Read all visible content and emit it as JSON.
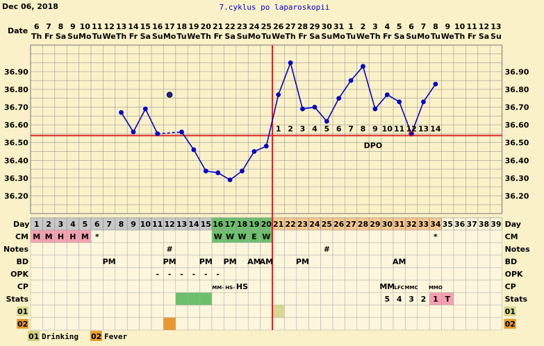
{
  "header": {
    "date": "Dec 06, 2018",
    "title": "7.cyklus po laparoskopii",
    "date_label": "Date",
    "day_label": "Day",
    "dpo_label": "DPO"
  },
  "dates": [
    {
      "d": "6",
      "w": "Th"
    },
    {
      "d": "7",
      "w": "Fr"
    },
    {
      "d": "8",
      "w": "Sa"
    },
    {
      "d": "9",
      "w": "Su"
    },
    {
      "d": "10",
      "w": "Mo"
    },
    {
      "d": "11",
      "w": "Tu"
    },
    {
      "d": "12",
      "w": "We"
    },
    {
      "d": "13",
      "w": "Th"
    },
    {
      "d": "14",
      "w": "Fr"
    },
    {
      "d": "15",
      "w": "Sa"
    },
    {
      "d": "16",
      "w": "Su"
    },
    {
      "d": "17",
      "w": "Mo"
    },
    {
      "d": "18",
      "w": "Tu"
    },
    {
      "d": "19",
      "w": "We"
    },
    {
      "d": "20",
      "w": "Th"
    },
    {
      "d": "21",
      "w": "Fr"
    },
    {
      "d": "22",
      "w": "Sa"
    },
    {
      "d": "23",
      "w": "Su"
    },
    {
      "d": "24",
      "w": "Mo"
    },
    {
      "d": "25",
      "w": "Tu"
    },
    {
      "d": "26",
      "w": "We"
    },
    {
      "d": "27",
      "w": "Th"
    },
    {
      "d": "28",
      "w": "Fr"
    },
    {
      "d": "29",
      "w": "Sa"
    },
    {
      "d": "30",
      "w": "Su"
    },
    {
      "d": "31",
      "w": "Mo"
    },
    {
      "d": "1",
      "w": "Tu"
    },
    {
      "d": "2",
      "w": "We"
    },
    {
      "d": "3",
      "w": "Th"
    },
    {
      "d": "4",
      "w": "Fr"
    },
    {
      "d": "5",
      "w": "Sa"
    },
    {
      "d": "6",
      "w": "Su"
    },
    {
      "d": "7",
      "w": "Mo"
    },
    {
      "d": "8",
      "w": "Tu"
    },
    {
      "d": "9",
      "w": "We"
    },
    {
      "d": "10",
      "w": "Th"
    },
    {
      "d": "11",
      "w": "Fr"
    },
    {
      "d": "12",
      "w": "Sa"
    },
    {
      "d": "13",
      "w": "Su"
    }
  ],
  "chart_data": {
    "type": "line",
    "title": "7.cyklus po laparoskopii",
    "x_label": "Day",
    "y_label": "",
    "ylim": [
      36.1,
      37.05
    ],
    "y_ticks": [
      "36.20",
      "36.30",
      "36.40",
      "36.50",
      "36.60",
      "36.70",
      "36.80",
      "36.90"
    ],
    "cycle_days": 39,
    "temps": [
      {
        "day": 8,
        "t": 36.67
      },
      {
        "day": 9,
        "t": 36.56
      },
      {
        "day": 10,
        "t": 36.69
      },
      {
        "day": 11,
        "t": 36.55
      },
      {
        "day": 12,
        "t": 36.77,
        "discarded": true
      },
      {
        "day": 13,
        "t": 36.56
      },
      {
        "day": 14,
        "t": 36.46
      },
      {
        "day": 15,
        "t": 36.34
      },
      {
        "day": 16,
        "t": 36.33
      },
      {
        "day": 17,
        "t": 36.29
      },
      {
        "day": 18,
        "t": 36.34
      },
      {
        "day": 19,
        "t": 36.45
      },
      {
        "day": 20,
        "t": 36.48
      },
      {
        "day": 21,
        "t": 36.77
      },
      {
        "day": 22,
        "t": 36.95
      },
      {
        "day": 23,
        "t": 36.69
      },
      {
        "day": 24,
        "t": 36.7
      },
      {
        "day": 25,
        "t": 36.62
      },
      {
        "day": 26,
        "t": 36.75
      },
      {
        "day": 27,
        "t": 36.85
      },
      {
        "day": 28,
        "t": 36.93
      },
      {
        "day": 29,
        "t": 36.69
      },
      {
        "day": 30,
        "t": 36.77
      },
      {
        "day": 31,
        "t": 36.73
      },
      {
        "day": 32,
        "t": 36.55
      },
      {
        "day": 33,
        "t": 36.73
      },
      {
        "day": 34,
        "t": 36.83
      }
    ],
    "dashed_segments": [
      [
        11,
        13
      ]
    ],
    "coverline": 36.54,
    "ovulation_day": 20,
    "dpo_labels": [
      "1",
      "2",
      "3",
      "4",
      "5",
      "6",
      "7",
      "8",
      "9",
      "10",
      "11",
      "12",
      "13",
      "14"
    ],
    "dpo_start_day": 21,
    "grid": true,
    "legend": "bottom-left"
  },
  "rows": {
    "labels": [
      "CM",
      "Notes",
      "BD",
      "OPK",
      "CP",
      "Stats",
      "01",
      "02"
    ],
    "cm": {
      "1": "M",
      "2": "M",
      "3": "H",
      "4": "H",
      "5": "M",
      "6": "*",
      "16": "W",
      "17": "W",
      "18": "W",
      "19": "E",
      "20": "W",
      "34": "*"
    },
    "notes": {
      "12": "#",
      "25": "#"
    },
    "bd": {
      "7": "PM",
      "12": "PM",
      "15": "PM",
      "17": "PM",
      "19": "AM",
      "20": "AM",
      "23": "PM",
      "31": "AM"
    },
    "opk": {
      "11": "-",
      "12": "-",
      "13": "-",
      "14": "-",
      "15": "-",
      "16": "-"
    },
    "cp": {
      "16": "MM-",
      "17": "HS-",
      "18": "HS",
      "30": "MM",
      "31": "LFC",
      "32": "MMC",
      "34": "MMO"
    },
    "stats": {
      "30": "5",
      "31": "4",
      "32": "3",
      "33": "2",
      "34": "1",
      "35": "T"
    }
  },
  "legend": [
    {
      "code": "01",
      "label": "Drinking",
      "color": "#d0d080"
    },
    {
      "code": "02",
      "label": "Fever",
      "color": "#e8a030"
    }
  ],
  "colors": {
    "fertile_pink": "#f4a0b0",
    "green": "#6cc06c",
    "peach": "#f5c890",
    "day_gray": "#c8c8c8",
    "drinking": "#d8d890",
    "fever": "#e89830",
    "line": "#0000cc",
    "red": "#dd2222"
  }
}
